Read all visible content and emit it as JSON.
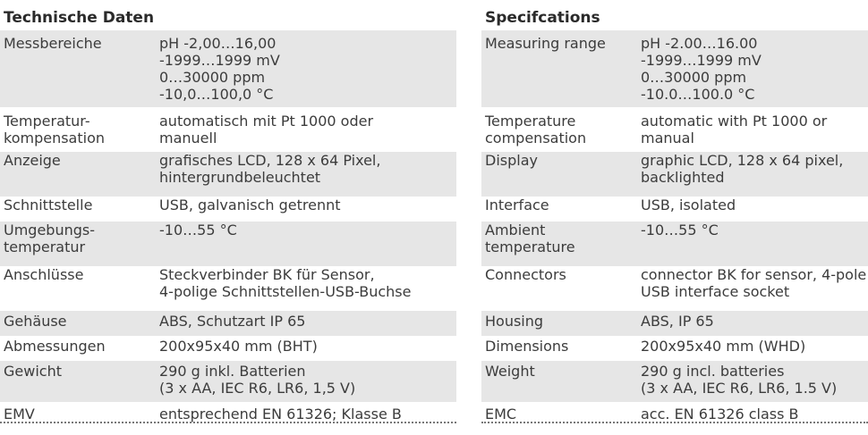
{
  "german": {
    "heading": "Technische Daten",
    "rows": [
      {
        "label": "Messbereiche",
        "value": "pH -2,00…16,00\n-1999…1999 mV\n0…30000 ppm\n-10,0…100,0 °C"
      },
      {
        "label": "Temperatur-\nkompensation",
        "value": "automatisch mit Pt 1000 oder\nmanuell"
      },
      {
        "label": "Anzeige",
        "value": "grafisches LCD, 128 x 64 Pixel,\nhintergrundbeleuchtet"
      },
      {
        "label": "Schnittstelle",
        "value": "USB, galvanisch getrennt"
      },
      {
        "label": "Umgebungs-\ntemperatur",
        "value": "-10…55 °C"
      },
      {
        "label": "Anschlüsse",
        "value": "Steckverbinder BK für Sensor,\n4-polige Schnittstellen-USB-Buchse"
      },
      {
        "label": "Gehäuse",
        "value": "ABS, Schutzart IP 65"
      },
      {
        "label": "Abmessungen",
        "value": "200x95x40 mm (BHT)"
      },
      {
        "label": "Gewicht",
        "value": "290 g inkl. Batterien\n(3 x AA, IEC R6, LR6, 1,5 V)"
      },
      {
        "label": "EMV",
        "value": "entsprechend EN 61326; Klasse B"
      }
    ]
  },
  "english": {
    "heading": "Specifcations",
    "rows": [
      {
        "label": "Measuring range",
        "value": "pH -2.00…16.00\n-1999…1999 mV\n0…30000 ppm\n-10.0…100.0 °C"
      },
      {
        "label": "Temperature\ncompensation",
        "value": "automatic with Pt 1000 or\nmanual"
      },
      {
        "label": "Display",
        "value": "graphic LCD, 128 x 64 pixel,\nbacklighted"
      },
      {
        "label": "Interface",
        "value": "USB, isolated"
      },
      {
        "label": "Ambient\ntemperature",
        "value": "-10…55 °C"
      },
      {
        "label": "Connectors",
        "value": "connector BK for sensor, 4-pole\nUSB interface socket"
      },
      {
        "label": "Housing",
        "value": "ABS, IP 65"
      },
      {
        "label": "Dimensions",
        "value": "200x95x40 mm (WHD)"
      },
      {
        "label": "Weight",
        "value": "290 g incl. batteries\n(3 x AA, IEC R6, LR6, 1.5 V)"
      },
      {
        "label": "EMC",
        "value": "acc. EN 61326 class B"
      }
    ]
  },
  "colors": {
    "row_shade": "#e6e6e6",
    "text": "#3c3c3c",
    "heading": "#2a2a2a"
  }
}
